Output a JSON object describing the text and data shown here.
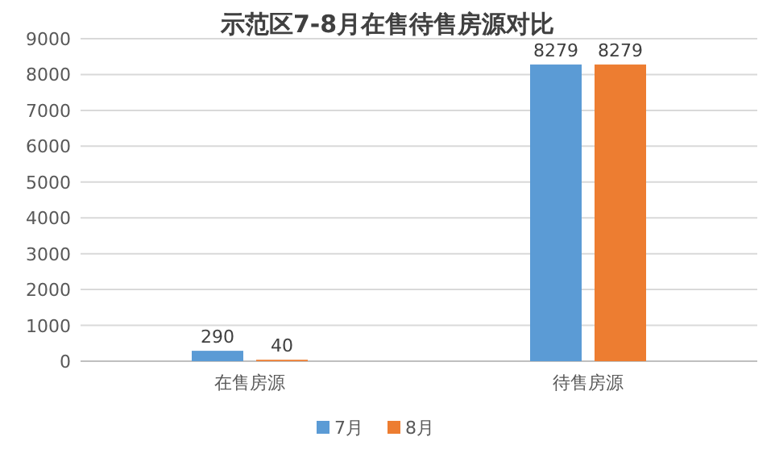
{
  "chart_data": {
    "type": "bar",
    "title": "示范区7-8月在售待售房源对比",
    "categories": [
      "在售房源",
      "待售房源"
    ],
    "series": [
      {
        "name": "7月",
        "color": "#5b9bd5",
        "values": [
          290,
          8279
        ]
      },
      {
        "name": "8月",
        "color": "#ed7d31",
        "values": [
          40,
          8279
        ]
      }
    ],
    "ylim": [
      0,
      9000
    ],
    "yticks": [
      0,
      1000,
      2000,
      3000,
      4000,
      5000,
      6000,
      7000,
      8000,
      9000
    ],
    "grid": "y",
    "legend": "bottom",
    "data_labels": true
  }
}
